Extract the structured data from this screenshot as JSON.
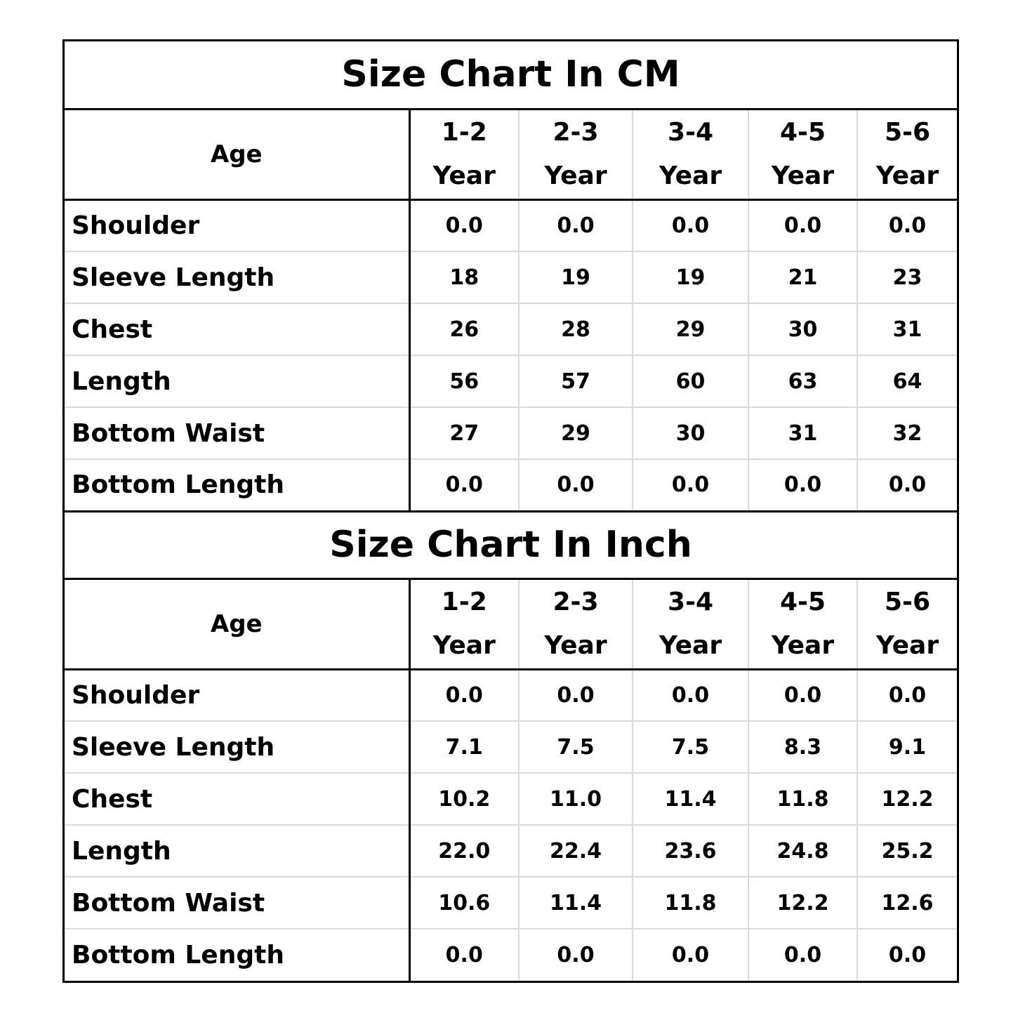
{
  "tables": [
    {
      "title": "Size Chart In CM",
      "header": {
        "label": "Age",
        "columns": [
          "1-2\nYear",
          "2-3\nYear",
          "3-4\nYear",
          "4-5\nYear",
          "5-6\nYear"
        ]
      },
      "rows": [
        [
          "Shoulder",
          "0.0",
          "0.0",
          "0.0",
          "0.0",
          "0.0"
        ],
        [
          "Sleeve Length",
          "18",
          "19",
          "19",
          "21",
          "23"
        ],
        [
          "Chest",
          "26",
          "28",
          "29",
          "30",
          "31"
        ],
        [
          "Length",
          "56",
          "57",
          "60",
          "63",
          "64"
        ],
        [
          "Bottom Waist",
          "27",
          "29",
          "30",
          "31",
          "32"
        ],
        [
          "Bottom Length",
          "0.0",
          "0.0",
          "0.0",
          "0.0",
          "0.0"
        ]
      ]
    },
    {
      "title": "Size Chart In Inch",
      "header": {
        "label": "Age",
        "columns": [
          "1-2\nYear",
          "2-3\nYear",
          "3-4\nYear",
          "4-5\nYear",
          "5-6\nYear"
        ]
      },
      "rows": [
        [
          "Shoulder",
          "0.0",
          "0.0",
          "0.0",
          "0.0",
          "0.0"
        ],
        [
          "Sleeve Length",
          "7.1",
          "7.5",
          "7.5",
          "8.3",
          "9.1"
        ],
        [
          "Chest",
          "10.2",
          "11.0",
          "11.4",
          "11.8",
          "12.2"
        ],
        [
          "Length",
          "22.0",
          "22.4",
          "23.6",
          "24.8",
          "25.2"
        ],
        [
          "Bottom Waist",
          "10.6",
          "11.4",
          "11.8",
          "12.2",
          "12.6"
        ],
        [
          "Bottom Length",
          "0.0",
          "0.0",
          "0.0",
          "0.0",
          "0.0"
        ]
      ]
    }
  ]
}
